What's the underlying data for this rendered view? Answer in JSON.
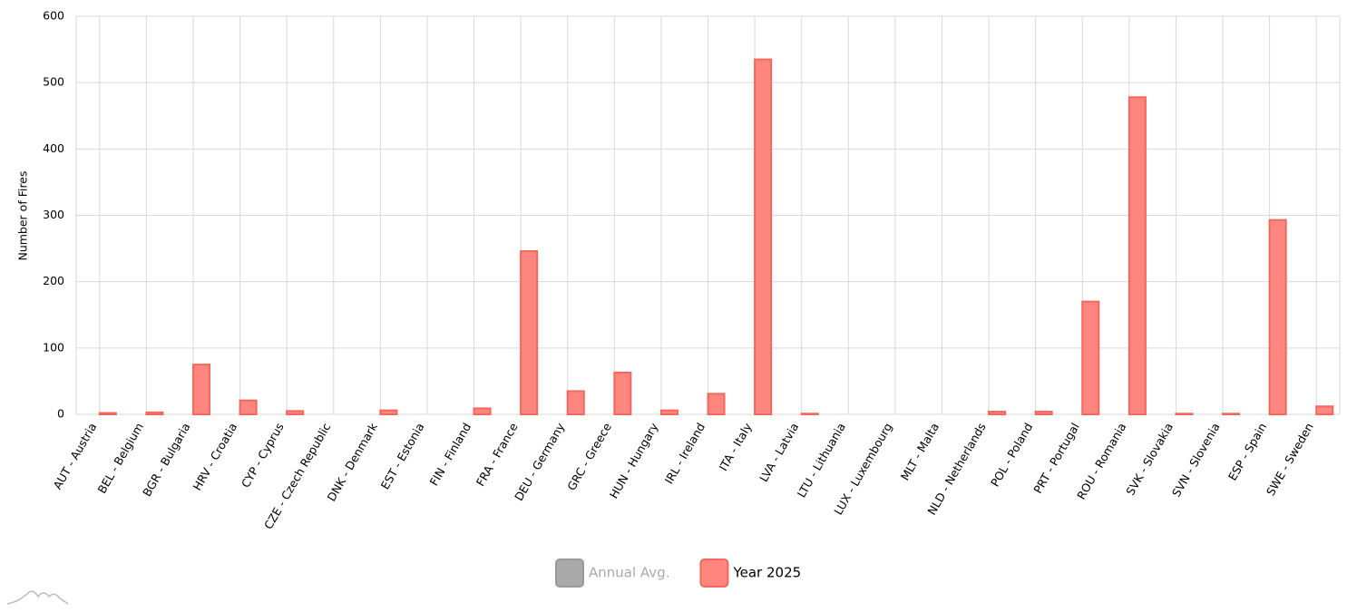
{
  "chart_data": {
    "type": "bar",
    "y_label": "Number of Fires",
    "categories": [
      "AUT - Austria",
      "BEL - Belgium",
      "BGR - Bulgaria",
      "HRV - Croatia",
      "CYP - Cyprus",
      "CZE - Czech Republic",
      "DNK - Denmark",
      "EST - Estonia",
      "FIN - Finland",
      "FRA - France",
      "DEU - Germany",
      "GRC - Greece",
      "HUN - Hungary",
      "IRL - Ireland",
      "ITA - Italy",
      "LVA - Latvia",
      "LTU - Lithuania",
      "LUX - Luxembourg",
      "MLT - Malta",
      "NLD - Netherlands",
      "POL - Poland",
      "PRT - Portugal",
      "ROU - Romania",
      "SVK - Slovakia",
      "SVN - Slovenia",
      "ESP - Spain",
      "SWE - Sweden"
    ],
    "series": [
      {
        "name": "Annual Avg.",
        "color": "#aaaaaa",
        "hidden": true,
        "values": [
          null,
          null,
          null,
          null,
          null,
          null,
          null,
          null,
          null,
          null,
          null,
          null,
          null,
          null,
          null,
          null,
          null,
          null,
          null,
          null,
          null,
          null,
          null,
          null,
          null,
          null,
          null
        ]
      },
      {
        "name": "Year 2025",
        "color": "#ff867e",
        "hidden": false,
        "values": [
          2,
          3,
          75,
          21,
          5,
          0,
          6,
          0,
          9,
          246,
          35,
          63,
          6,
          31,
          535,
          1,
          0,
          0,
          0,
          4,
          4,
          170,
          478,
          1,
          1,
          293,
          12
        ]
      }
    ],
    "ylim": [
      0,
      600
    ],
    "yticks": [
      0,
      100,
      200,
      300,
      400,
      500,
      600
    ],
    "grid": true
  }
}
